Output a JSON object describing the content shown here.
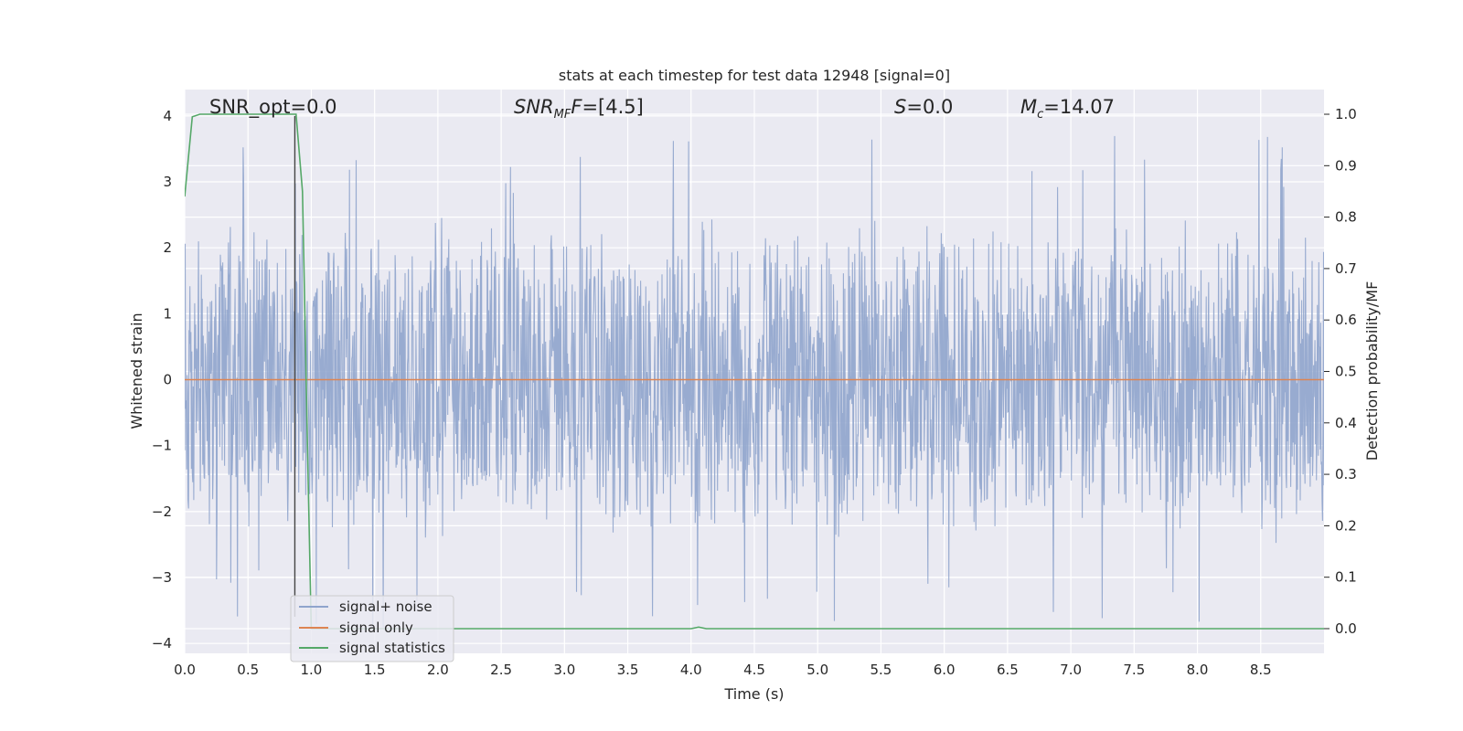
{
  "chart_data": {
    "type": "line",
    "title": "stats at each timestep for test data 12948 [signal=0]",
    "xlabel": "Time (s)",
    "ylabel": "Whitened strain",
    "ylabel_right": "Detection probability/MF",
    "xlim": [
      0.0,
      9.0
    ],
    "ylim": [
      -4.15,
      4.4
    ],
    "ylim_right": [
      -0.048,
      1.048
    ],
    "x_ticks": [
      "0.0",
      "0.5",
      "1.0",
      "1.5",
      "2.0",
      "2.5",
      "3.0",
      "3.5",
      "4.0",
      "4.5",
      "5.0",
      "5.5",
      "6.0",
      "6.5",
      "7.0",
      "7.5",
      "8.0",
      "8.5"
    ],
    "y_ticks": [
      "4",
      "3",
      "2",
      "1",
      "0",
      "−1",
      "−2",
      "−3",
      "−4"
    ],
    "y_ticks_right": [
      "1.0",
      "0.9",
      "0.8",
      "0.7",
      "0.6",
      "0.5",
      "0.4",
      "0.3",
      "0.2",
      "0.1",
      "0.0"
    ],
    "grid": true,
    "legend_position": "lower-left",
    "annotations": {
      "snr_opt": "SNR_opt=0.0",
      "snr_mf_main": "SNR",
      "snr_mf_sub": "MF",
      "snr_mf_rest": "=[4.5]",
      "s_main": "S",
      "s_rest": "=0.0",
      "mc_main": "M",
      "mc_sub": "c",
      "mc_rest": "=14.07"
    },
    "marker_line_x": 0.87,
    "series": [
      {
        "name": "signal+ noise",
        "color": "#8fa4cc",
        "description_values": "dense noise, envelope approximately ±2.5 with peaks to +4.0 and −3.8",
        "amplitude_envelope": 2.5,
        "peak_max": 4.0,
        "peak_min": -3.8
      },
      {
        "name": "signal only",
        "color": "#dd8452",
        "x": [
          0.0,
          9.0
        ],
        "y": [
          0.0,
          0.0
        ]
      },
      {
        "name": "signal statistics",
        "color": "#55a868",
        "axis": "right",
        "x": [
          0.0,
          0.06,
          0.12,
          0.2,
          0.4,
          0.6,
          0.8,
          0.88,
          0.93,
          0.97,
          1.0,
          1.5,
          2.0,
          3.0,
          3.5,
          4.0,
          4.06,
          4.12,
          5.0,
          6.0,
          7.0,
          8.0,
          9.0
        ],
        "y": [
          0.84,
          0.995,
          1.0,
          1.0,
          1.0,
          1.0,
          1.0,
          1.0,
          0.85,
          0.35,
          0.0,
          0.0,
          0.0,
          0.0,
          0.0,
          0.0,
          0.003,
          0.0,
          0.0,
          0.0,
          0.0,
          0.0,
          0.0
        ]
      }
    ]
  }
}
